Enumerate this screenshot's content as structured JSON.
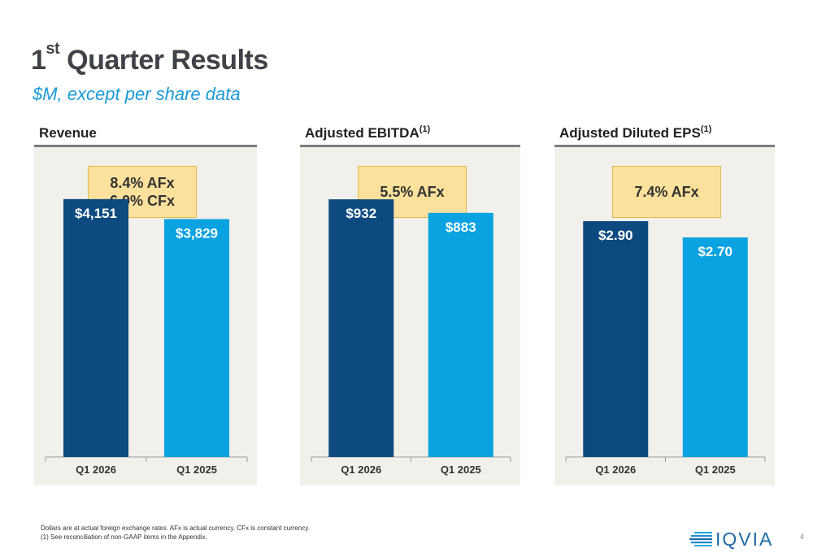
{
  "title": {
    "main": "1",
    "sup": "st",
    "rest": " Quarter Results"
  },
  "subtitle": "$M, except per share data",
  "colors": {
    "current": "#0c4a7f",
    "prior": "#0aa2e0",
    "panel_bg": "#f1f0ea",
    "callout_bg": "#fbe19b",
    "accent": "#1a9ad6"
  },
  "panels": [
    {
      "heading": "Revenue",
      "heading_sup": "",
      "callout_lines": [
        "8.4% AFx",
        "6.0% CFx"
      ]
    },
    {
      "heading": "Adjusted EBITDA",
      "heading_sup": "(1)",
      "callout_lines": [
        "5.5% AFx"
      ]
    },
    {
      "heading": "Adjusted Diluted EPS",
      "heading_sup": "(1)",
      "callout_lines": [
        "7.4% AFx"
      ]
    }
  ],
  "chart_data": [
    {
      "type": "bar",
      "title": "Revenue",
      "categories": [
        "Q1 2026",
        "Q1 2025"
      ],
      "values": [
        4151,
        3829
      ],
      "data_labels": [
        "$4,151",
        "$3,829"
      ],
      "ylim": [
        0,
        4450
      ]
    },
    {
      "type": "bar",
      "title": "Adjusted EBITDA",
      "categories": [
        "Q1 2026",
        "Q1 2025"
      ],
      "values": [
        932,
        883
      ],
      "data_labels": [
        "$932",
        "$883"
      ],
      "ylim": [
        0,
        1000
      ]
    },
    {
      "type": "bar",
      "title": "Adjusted Diluted EPS",
      "categories": [
        "Q1 2026",
        "Q1 2025"
      ],
      "values": [
        2.9,
        2.7
      ],
      "data_labels": [
        "$2.90",
        "$2.70"
      ],
      "ylim": [
        0,
        3.4
      ]
    }
  ],
  "footnotes": [
    "Dollars are at actual foreign exchange rates. AFx is actual currency. CFx is constant currency.",
    "(1)  See reconciliation of non-GAAP items in the Appendix."
  ],
  "logo": {
    "text": "IQVIA",
    "icon": "iqvia-stripes-logo"
  },
  "page_number": "4"
}
